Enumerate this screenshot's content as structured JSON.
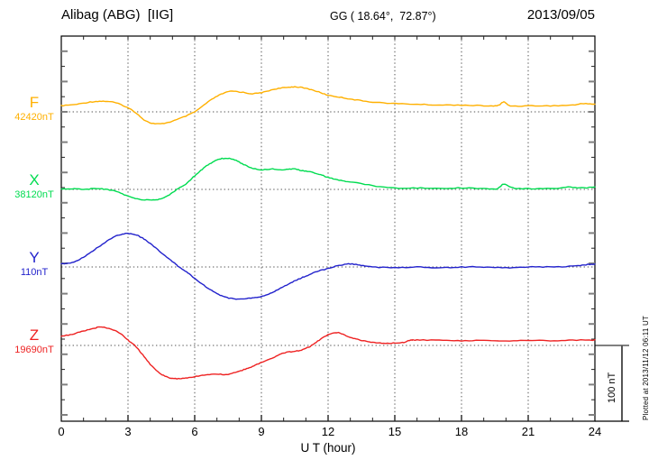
{
  "header": {
    "station": "Alibag (ABG)  [IIG]",
    "coords": "GG ( 18.64°,  72.87°)",
    "date": "2013/09/05"
  },
  "channels": [
    {
      "label": "F",
      "baseline_label": "42420nT",
      "color": "#FFB000"
    },
    {
      "label": "X",
      "baseline_label": "38120nT",
      "color": "#00DC50"
    },
    {
      "label": "Y",
      "baseline_label": "110nT",
      "color": "#2222CC"
    },
    {
      "label": "Z",
      "baseline_label": "19690nT",
      "color": "#EE2222"
    }
  ],
  "xaxis": {
    "label": "U T (hour)",
    "ticks": [
      "0",
      "3",
      "6",
      "9",
      "12",
      "15",
      "18",
      "21",
      "24"
    ]
  },
  "scalebar": {
    "label": "100 nT",
    "nT": 100
  },
  "footer": {
    "plotted": "Plotted at 2013/11/12 06:11 UT"
  },
  "chart_data": {
    "type": "line",
    "title": "Alibag (ABG) [IIG] magnetogram 2013/09/05",
    "xlabel": "U T (hour)",
    "xlim": [
      0,
      24
    ],
    "xticks": [
      0,
      3,
      6,
      9,
      12,
      15,
      18,
      21,
      24
    ],
    "grid": "dotted vertical every 3 h, dotted horizontal at each channel baseline",
    "scale_bar_nT": 100,
    "series": [
      {
        "name": "F",
        "baseline_nT": 42420,
        "color": "#FFB000",
        "units": "nT offset from baseline",
        "points": [
          [
            0,
            8
          ],
          [
            0.7,
            10
          ],
          [
            1.3,
            13
          ],
          [
            1.8,
            14
          ],
          [
            2.3,
            13
          ],
          [
            2.8,
            8
          ],
          [
            3.3,
            0
          ],
          [
            3.8,
            -12
          ],
          [
            4.3,
            -16
          ],
          [
            4.8,
            -14
          ],
          [
            5.4,
            -8
          ],
          [
            6,
            0
          ],
          [
            6.6,
            13
          ],
          [
            7.1,
            22
          ],
          [
            7.6,
            27
          ],
          [
            8.1,
            26
          ],
          [
            8.6,
            24
          ],
          [
            9.1,
            26
          ],
          [
            9.6,
            30
          ],
          [
            10.1,
            32
          ],
          [
            10.5,
            33
          ],
          [
            11,
            31
          ],
          [
            11.5,
            27
          ],
          [
            12,
            22
          ],
          [
            12.6,
            19
          ],
          [
            13.2,
            16
          ],
          [
            14,
            13
          ],
          [
            15,
            11
          ],
          [
            16,
            10
          ],
          [
            17,
            9
          ],
          [
            18,
            9
          ],
          [
            19,
            8
          ],
          [
            19.6,
            8
          ],
          [
            19.9,
            13
          ],
          [
            20.2,
            8
          ],
          [
            21,
            8
          ],
          [
            22,
            8
          ],
          [
            23,
            9
          ],
          [
            23.5,
            11
          ],
          [
            24,
            10
          ]
        ]
      },
      {
        "name": "X",
        "baseline_nT": 38120,
        "color": "#00DC50",
        "units": "nT offset from baseline",
        "points": [
          [
            0,
            0
          ],
          [
            0.5,
            1
          ],
          [
            1,
            0
          ],
          [
            1.5,
            1
          ],
          [
            2,
            0
          ],
          [
            2.5,
            -3
          ],
          [
            3,
            -9
          ],
          [
            3.5,
            -13
          ],
          [
            4,
            -14
          ],
          [
            4.4,
            -13
          ],
          [
            4.8,
            -8
          ],
          [
            5.2,
            0
          ],
          [
            5.6,
            7
          ],
          [
            6,
            18
          ],
          [
            6.4,
            28
          ],
          [
            6.8,
            36
          ],
          [
            7.1,
            40
          ],
          [
            7.5,
            41
          ],
          [
            7.8,
            39
          ],
          [
            8.2,
            33
          ],
          [
            8.6,
            28
          ],
          [
            9,
            26
          ],
          [
            9.5,
            27
          ],
          [
            10,
            26
          ],
          [
            10.4,
            27
          ],
          [
            10.8,
            25
          ],
          [
            11.2,
            23
          ],
          [
            11.6,
            20
          ],
          [
            12,
            16
          ],
          [
            12.5,
            12
          ],
          [
            13,
            10
          ],
          [
            14,
            5
          ],
          [
            15,
            2
          ],
          [
            16,
            2
          ],
          [
            17,
            1
          ],
          [
            18,
            2
          ],
          [
            19,
            1
          ],
          [
            19.6,
            1
          ],
          [
            19.9,
            7
          ],
          [
            20.3,
            2
          ],
          [
            21,
            1
          ],
          [
            22,
            1
          ],
          [
            22.8,
            3
          ],
          [
            23.4,
            2
          ],
          [
            24,
            3
          ]
        ]
      },
      {
        "name": "Y",
        "baseline_nT": 110,
        "color": "#2222CC",
        "units": "nT offset from baseline",
        "points": [
          [
            0,
            4
          ],
          [
            0.5,
            6
          ],
          [
            1,
            13
          ],
          [
            1.5,
            23
          ],
          [
            2,
            33
          ],
          [
            2.4,
            40
          ],
          [
            2.7,
            43
          ],
          [
            3,
            44
          ],
          [
            3.3,
            43
          ],
          [
            3.6,
            39
          ],
          [
            4,
            31
          ],
          [
            4.5,
            19
          ],
          [
            5,
            7
          ],
          [
            5.3,
            0
          ],
          [
            5.7,
            -8
          ],
          [
            6,
            -15
          ],
          [
            6.5,
            -26
          ],
          [
            7,
            -35
          ],
          [
            7.4,
            -40
          ],
          [
            7.8,
            -42
          ],
          [
            8.2,
            -42
          ],
          [
            8.6,
            -41
          ],
          [
            9,
            -39
          ],
          [
            9.4,
            -35
          ],
          [
            9.8,
            -29
          ],
          [
            10.2,
            -23
          ],
          [
            10.6,
            -17
          ],
          [
            11,
            -12
          ],
          [
            11.5,
            -6
          ],
          [
            12,
            -2
          ],
          [
            12.5,
            2
          ],
          [
            13,
            4
          ],
          [
            13.5,
            2
          ],
          [
            14,
            0
          ],
          [
            15,
            -1
          ],
          [
            16,
            0
          ],
          [
            17,
            -1
          ],
          [
            18,
            0
          ],
          [
            19,
            0
          ],
          [
            20,
            -1
          ],
          [
            21,
            0
          ],
          [
            22,
            0
          ],
          [
            23,
            1
          ],
          [
            23.6,
            3
          ],
          [
            24,
            4
          ]
        ]
      },
      {
        "name": "Z",
        "baseline_nT": 19690,
        "color": "#EE2222",
        "units": "nT offset from baseline",
        "points": [
          [
            0,
            12
          ],
          [
            0.5,
            15
          ],
          [
            1,
            19
          ],
          [
            1.5,
            23
          ],
          [
            1.8,
            24
          ],
          [
            2.2,
            22
          ],
          [
            2.6,
            17
          ],
          [
            3,
            7
          ],
          [
            3.3,
            0
          ],
          [
            3.6,
            -10
          ],
          [
            4,
            -25
          ],
          [
            4.4,
            -36
          ],
          [
            4.8,
            -42
          ],
          [
            5.2,
            -44
          ],
          [
            5.6,
            -43
          ],
          [
            6,
            -41
          ],
          [
            6.5,
            -39
          ],
          [
            7,
            -38
          ],
          [
            7.5,
            -38
          ],
          [
            8,
            -34
          ],
          [
            8.4,
            -30
          ],
          [
            8.8,
            -25
          ],
          [
            9.2,
            -20
          ],
          [
            9.6,
            -15
          ],
          [
            10,
            -10
          ],
          [
            10.4,
            -8
          ],
          [
            10.8,
            -6
          ],
          [
            11.2,
            -1
          ],
          [
            11.6,
            7
          ],
          [
            12,
            14
          ],
          [
            12.4,
            17
          ],
          [
            12.8,
            13
          ],
          [
            13.2,
            9
          ],
          [
            13.6,
            6
          ],
          [
            14,
            4
          ],
          [
            14.5,
            3
          ],
          [
            15,
            3
          ],
          [
            15.4,
            4
          ],
          [
            15.7,
            7
          ],
          [
            16,
            7
          ],
          [
            17,
            7
          ],
          [
            18,
            6
          ],
          [
            19,
            7
          ],
          [
            20,
            6
          ],
          [
            21,
            7
          ],
          [
            22,
            6
          ],
          [
            23,
            7
          ],
          [
            24,
            7
          ]
        ]
      }
    ]
  }
}
